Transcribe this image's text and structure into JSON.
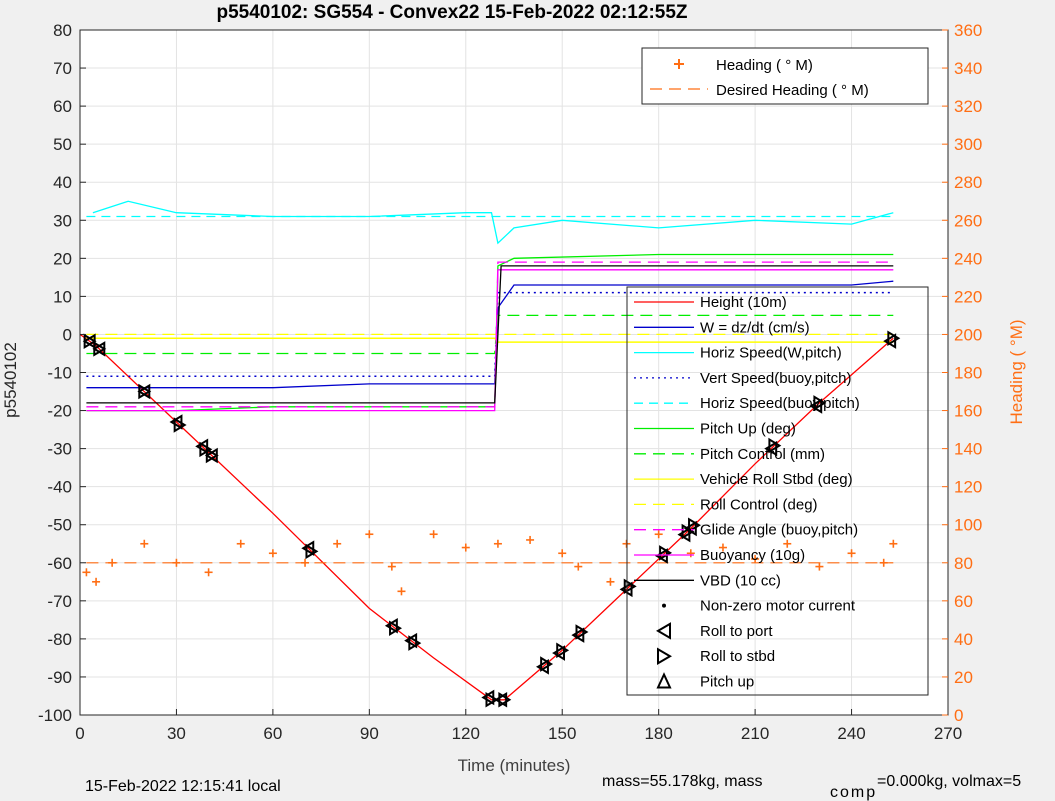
{
  "chart_data": {
    "type": "line",
    "title": "p5540102: SG554 - Convex22 15-Feb-2022 02:12:55Z",
    "xlabel": "Time (minutes)",
    "ylabel_left": "p5540102",
    "ylabel_right": "Heading (  °M)",
    "xlim": [
      0,
      270
    ],
    "ylim_left": [
      -100,
      80
    ],
    "ylim_right": [
      0,
      360
    ],
    "xticks": [
      "0",
      "30",
      "60",
      "90",
      "120",
      "150",
      "180",
      "210",
      "240",
      "270"
    ],
    "yticks_left": [
      "-100",
      "-90",
      "-80",
      "-70",
      "-60",
      "-50",
      "-40",
      "-30",
      "-20",
      "-10",
      "0",
      "10",
      "20",
      "30",
      "40",
      "50",
      "60",
      "70",
      "80"
    ],
    "yticks_right": [
      "0",
      "20",
      "40",
      "60",
      "80",
      "100",
      "120",
      "140",
      "160",
      "180",
      "200",
      "220",
      "240",
      "260",
      "280",
      "300",
      "320",
      "340",
      "360"
    ],
    "grid": true,
    "colors": {
      "orange": "#ff6e14",
      "red": "#ff0000",
      "blue": "#0000cc",
      "cyan": "#00ffff",
      "green": "#00ee00",
      "yellow": "#ffff00",
      "magenta": "#ff00ff",
      "black": "#000000"
    },
    "legend_top": {
      "placement": "top-right",
      "entries": [
        "Heading (  ° M)",
        "Desired Heading (     ° M)"
      ]
    },
    "legend_main": {
      "placement": "right",
      "entries": [
        "Height (10m)",
        "W = dz/dt (cm/s)",
        "Horiz Speed(W,pitch)",
        "Vert Speed(buoy,pitch)",
        "Horiz Speed(buoy,pitch)",
        "Pitch Up (deg)",
        "Pitch Control (mm)",
        "Vehicle Roll Stbd (deg)",
        "Roll Control (deg)",
        "Glide Angle (buoy,pitch)",
        "Buoyancy (10g)",
        "VBD (10 cc)",
        "Non-zero motor current",
        "Roll to port",
        "Roll to stbd",
        "Pitch up"
      ]
    },
    "series": [
      {
        "name": "Height (10m)",
        "axis": "left",
        "x": [
          0,
          5,
          30,
          60,
          90,
          110,
          128,
          132,
          150,
          170,
          190,
          210,
          230,
          253
        ],
        "y": [
          0,
          -3,
          -23,
          -47,
          -72,
          -85,
          -96,
          -96,
          -83,
          -67,
          -51,
          -34,
          -18,
          -1
        ]
      },
      {
        "name": "W = dz/dt (cm/s)",
        "axis": "left",
        "x": [
          2,
          10,
          30,
          60,
          90,
          120,
          129,
          130,
          135,
          150,
          180,
          210,
          240,
          253
        ],
        "y": [
          -14,
          -14,
          -14,
          -14,
          -13,
          -13,
          -13,
          7,
          13,
          13,
          13,
          13,
          13,
          14
        ]
      },
      {
        "name": "Horiz Speed(W,pitch)",
        "axis": "left",
        "x": [
          4,
          15,
          30,
          60,
          90,
          120,
          128,
          130,
          135,
          150,
          180,
          210,
          240,
          253
        ],
        "y": [
          32,
          35,
          32,
          31,
          31,
          32,
          32,
          24,
          28,
          30,
          28,
          30,
          29,
          32
        ]
      },
      {
        "name": "Vert Speed(buoy,pitch)",
        "axis": "left",
        "x": [
          2,
          129,
          130,
          253
        ],
        "y": [
          -11,
          -11,
          11,
          11
        ]
      },
      {
        "name": "Horiz Speed(buoy,pitch)",
        "axis": "left",
        "x": [
          2,
          129,
          130,
          253
        ],
        "y": [
          31,
          31,
          31,
          31
        ]
      },
      {
        "name": "Pitch Up (deg)",
        "axis": "left",
        "x": [
          2,
          30,
          60,
          90,
          129,
          130,
          135,
          180,
          253
        ],
        "y": [
          -20,
          -20,
          -19,
          -19,
          -19,
          18,
          20,
          21,
          21
        ]
      },
      {
        "name": "Pitch Control (mm)",
        "axis": "left",
        "x": [
          2,
          129,
          130,
          253
        ],
        "y": [
          -5,
          -5,
          5,
          5
        ]
      },
      {
        "name": "Vehicle Roll Stbd (deg)",
        "axis": "left",
        "x": [
          2,
          30,
          60,
          90,
          129,
          130,
          180,
          253
        ],
        "y": [
          -1,
          -1,
          -1,
          -1,
          -1,
          -2,
          -2,
          -2
        ]
      },
      {
        "name": "Roll Control (deg)",
        "axis": "left",
        "x": [
          2,
          253
        ],
        "y": [
          0,
          0
        ]
      },
      {
        "name": "Glide Angle (buoy,pitch)",
        "axis": "left",
        "x": [
          2,
          129,
          130,
          253
        ],
        "y": [
          -19,
          -19,
          19,
          19
        ]
      },
      {
        "name": "Buoyancy (10g)",
        "axis": "left",
        "x": [
          2,
          129,
          130,
          253
        ],
        "y": [
          -20,
          -20,
          17,
          17
        ]
      },
      {
        "name": "VBD (10 cc)",
        "axis": "left",
        "x": [
          2,
          129,
          131,
          253
        ],
        "y": [
          -18,
          -18,
          18,
          18
        ]
      },
      {
        "name": "Desired Heading (     ° M)",
        "axis": "right",
        "x": [
          2,
          253
        ],
        "y": [
          80,
          80
        ]
      },
      {
        "name": "Heading (  ° M)",
        "axis": "right",
        "x": [
          2,
          5,
          10,
          20,
          30,
          40,
          50,
          60,
          70,
          80,
          90,
          97,
          100,
          110,
          120,
          130,
          140,
          150,
          155,
          165,
          170,
          180,
          190,
          200,
          210,
          220,
          230,
          240,
          250,
          253
        ],
        "y": [
          75,
          70,
          80,
          90,
          80,
          75,
          90,
          85,
          80,
          90,
          95,
          78,
          65,
          95,
          88,
          90,
          92,
          85,
          78,
          70,
          90,
          95,
          85,
          88,
          82,
          90,
          78,
          85,
          80,
          90
        ]
      }
    ],
    "markers": {
      "roll_to_port_x": [
        3,
        6,
        20,
        30,
        38,
        41,
        71,
        97,
        103,
        127,
        131,
        144,
        149,
        155,
        170,
        181,
        188,
        190,
        215,
        229,
        252
      ],
      "roll_to_stbd_x": [
        3,
        6,
        20,
        31,
        39,
        41,
        72,
        98,
        104,
        128,
        132,
        145,
        150,
        156,
        171,
        182,
        189,
        191,
        216,
        230,
        253
      ]
    }
  },
  "footer": {
    "local_time": "15-Feb-2022 12:15:41 local",
    "mass_text": "mass=55.178kg, mass",
    "comp_sub": "comp",
    "volmax_text": "=0.000kg, volmax=5"
  }
}
